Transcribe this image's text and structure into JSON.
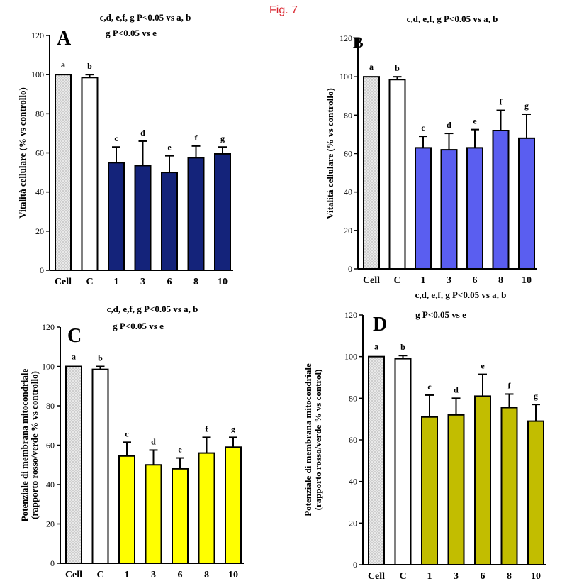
{
  "figure": {
    "label": "Fig. 7"
  },
  "colors": {
    "cell_fill": "#e6e6e6",
    "control_fill": "#ffffff",
    "A": "#14237a",
    "B": "#5a5ef0",
    "C": "#ffff00",
    "D": "#c2bd00"
  },
  "chart_data": [
    {
      "panel": "A",
      "type": "bar",
      "annotations": [
        "c,d, e,f, g P<0.05 vs a, b",
        "g P<0.05 vs e"
      ],
      "ylabel_lines": [
        "Vitalità cellulare (% vs controllo)"
      ],
      "categories": [
        "Cell",
        "C",
        "1",
        "3",
        "6",
        "8",
        "10"
      ],
      "values": [
        100,
        98.5,
        55,
        53.5,
        50,
        57.5,
        59.5
      ],
      "errors": [
        0,
        1.5,
        8,
        12.5,
        8.5,
        6,
        3.5
      ],
      "bar_letters": [
        "a",
        "b",
        "c",
        "d",
        "e",
        "f",
        "g"
      ],
      "ylim": [
        0,
        120
      ],
      "yticks": [
        0,
        20,
        40,
        60,
        80,
        100,
        120
      ],
      "grid": false
    },
    {
      "panel": "B",
      "type": "bar",
      "annotations": [
        "c,d, e,f, g P<0.05 vs a, b"
      ],
      "ylabel_lines": [
        "Vitalità cellulare (% vs controllo)"
      ],
      "categories": [
        "Cell",
        "C",
        "1",
        "3",
        "6",
        "8",
        "10"
      ],
      "values": [
        100,
        98.5,
        63,
        62,
        63,
        72,
        68
      ],
      "errors": [
        0,
        1.5,
        6,
        8.5,
        9.5,
        10.5,
        12.5
      ],
      "bar_letters": [
        "a",
        "b",
        "c",
        "d",
        "e",
        "f",
        "g"
      ],
      "ylim": [
        0,
        120
      ],
      "yticks": [
        0,
        20,
        40,
        60,
        80,
        100,
        120
      ],
      "grid": false
    },
    {
      "panel": "C",
      "type": "bar",
      "annotations": [
        "c,d, e,f, g P<0.05 vs a, b",
        "g P<0.05 vs e"
      ],
      "ylabel_lines": [
        "Potenziale di membrana mitocondriale",
        "(rapporto rosso/verde % vs controllo)"
      ],
      "categories": [
        "Cell",
        "C",
        "1",
        "3",
        "6",
        "8",
        "10"
      ],
      "values": [
        100,
        98.5,
        54.5,
        50,
        48,
        56,
        59
      ],
      "errors": [
        0,
        1.5,
        7,
        7.5,
        5.5,
        8,
        5
      ],
      "bar_letters": [
        "a",
        "b",
        "c",
        "d",
        "e",
        "f",
        "g"
      ],
      "ylim": [
        0,
        120
      ],
      "yticks": [
        0,
        20,
        40,
        60,
        80,
        100,
        120
      ],
      "grid": false
    },
    {
      "panel": "D",
      "type": "bar",
      "annotations": [
        "c,d, e,f, g P<0.05 vs a, b",
        "g P<0.05 vs e"
      ],
      "ylabel_lines": [
        "Potenziale di membrana mitocondriale",
        "(rapporto rosso/verde % vs control)"
      ],
      "categories": [
        "Cell",
        "C",
        "1",
        "3",
        "6",
        "8",
        "10"
      ],
      "values": [
        100,
        99,
        71,
        72,
        81,
        75.5,
        69
      ],
      "errors": [
        0,
        1.5,
        10.5,
        8,
        10.5,
        6.5,
        8
      ],
      "bar_letters": [
        "a",
        "b",
        "c",
        "d",
        "e",
        "f",
        "g"
      ],
      "ylim": [
        0,
        120
      ],
      "yticks": [
        0,
        20,
        40,
        60,
        80,
        100,
        120
      ],
      "grid": false
    }
  ]
}
